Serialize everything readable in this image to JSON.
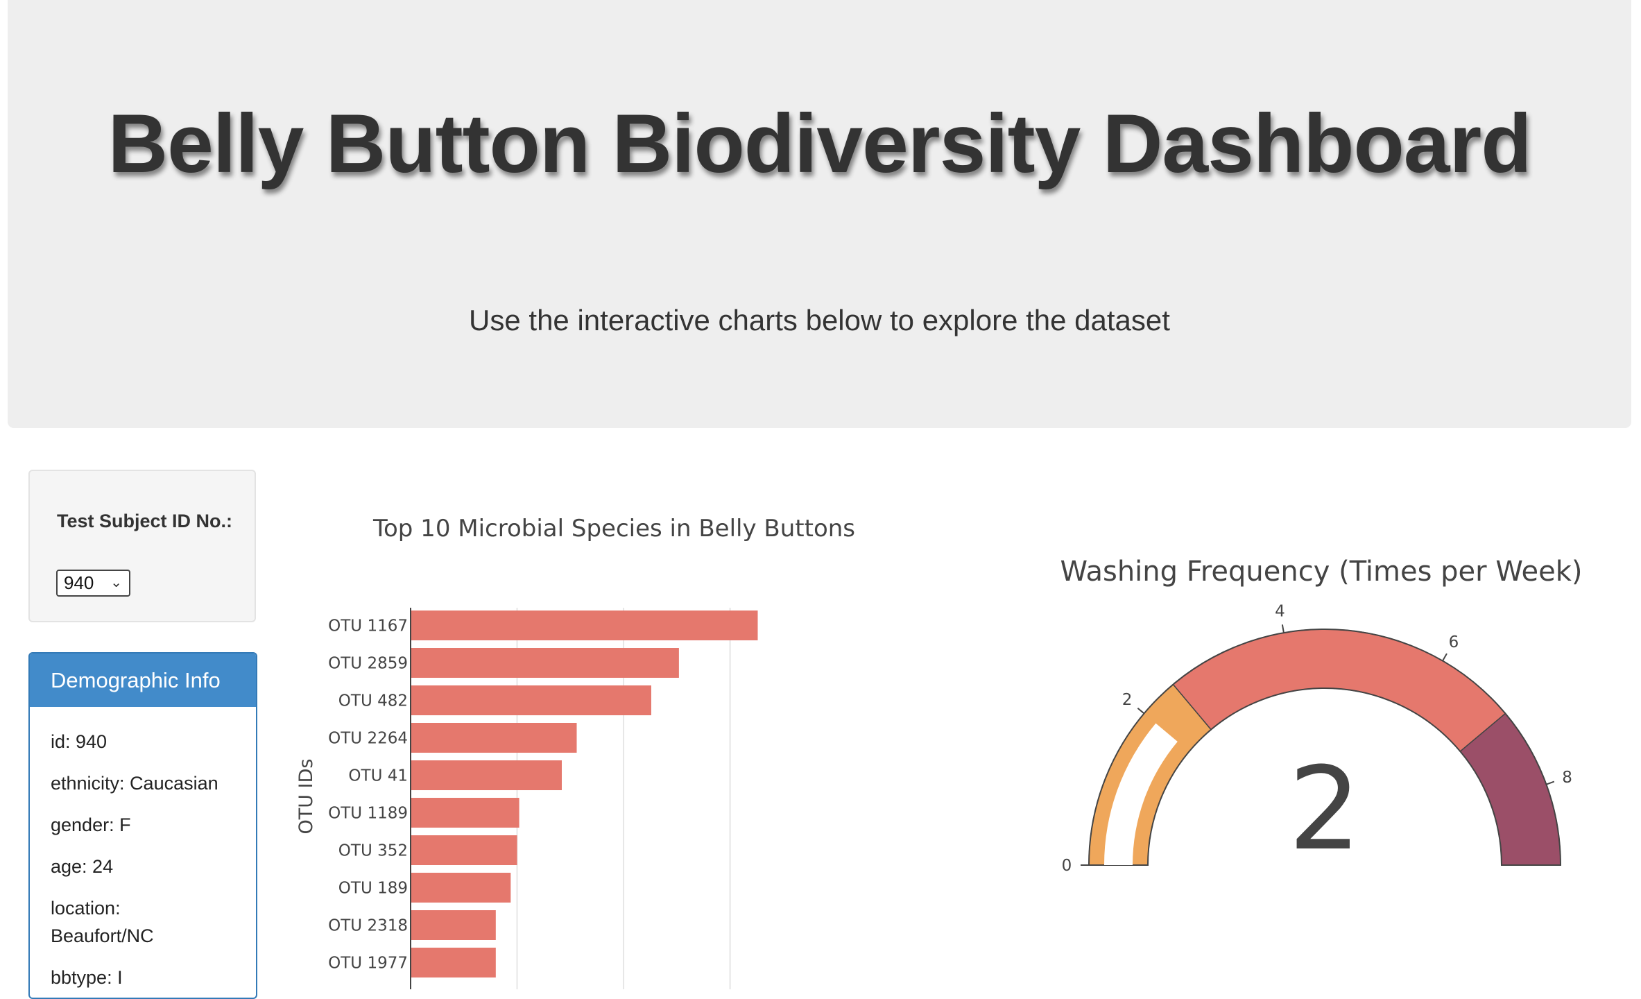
{
  "header": {
    "title": "Belly Button Biodiversity Dashboard",
    "subtitle": "Use the interactive charts below to explore the dataset"
  },
  "selector": {
    "label": "Test Subject ID No.:",
    "selected_value": "940"
  },
  "demographics": {
    "heading": "Demographic Info",
    "lines": {
      "id": "id: 940",
      "ethnicity": "ethnicity: Caucasian",
      "gender": "gender: F",
      "age": "age: 24",
      "location_label": "location:",
      "location_value": "Beaufort/NC",
      "bbtype": "bbtype: I"
    }
  },
  "chart_data": [
    {
      "type": "bar",
      "orientation": "horizontal",
      "title": "Top 10 Microbial Species in Belly Buttons",
      "ylabel": "OTU IDs",
      "xlabel": "",
      "categories": [
        "OTU 1167",
        "OTU 2859",
        "OTU 482",
        "OTU 2264",
        "OTU 41",
        "OTU 1189",
        "OTU 352",
        "OTU 189",
        "OTU 2318",
        "OTU 1977"
      ],
      "values": [
        163,
        126,
        113,
        78,
        71,
        51,
        50,
        47,
        40,
        40
      ],
      "xlim": [
        0,
        170
      ],
      "xticks": [
        0,
        50,
        100,
        150
      ],
      "grid": true,
      "color": "#e5786d"
    },
    {
      "type": "gauge",
      "title": "Washing Frequency (Times per Week)",
      "value": 2,
      "value_label": "2",
      "range": [
        0,
        9
      ],
      "ticks": [
        "0",
        "2",
        "4",
        "6",
        "8"
      ],
      "steps": [
        {
          "range": [
            0,
            2.5
          ],
          "color": "#efa75b"
        },
        {
          "range": [
            2.5,
            7
          ],
          "color": "#e5786d"
        },
        {
          "range": [
            7,
            9
          ],
          "color": "#9b4f68"
        }
      ],
      "bar_color": "#ffffff"
    }
  ]
}
